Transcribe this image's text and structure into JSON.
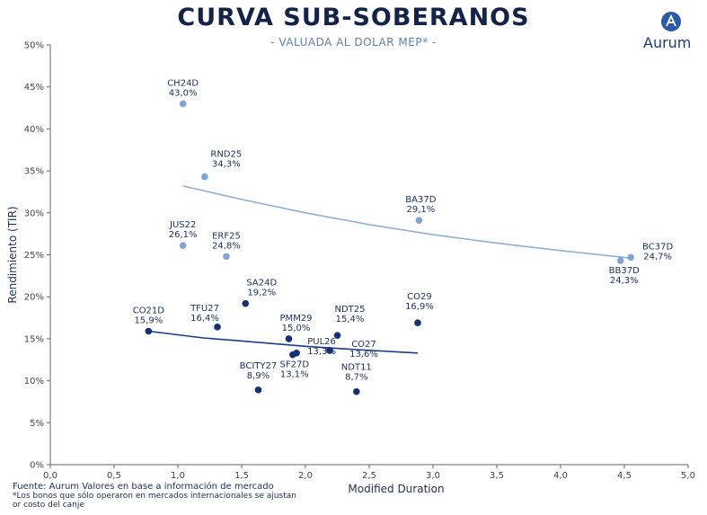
{
  "header": {
    "title": "CURVA SUB-SOBERANOS",
    "subtitle": "- VALUADA AL DOLAR MEP* -",
    "brand": "Aurum"
  },
  "footer": {
    "source": "Fuente: Aurum Valores en base a información de mercado",
    "note": "*Los bonos que sólo operaron en mercados internacionales se ajustan or costo del canje"
  },
  "colors": {
    "light": "#7fa4d6",
    "dark": "#152f7a",
    "curve_light": "#8fb0d4",
    "curve_dark": "#1b3a8a"
  },
  "chart_data": {
    "type": "scatter",
    "title": "CURVA SUB-SOBERANOS",
    "xlabel": "Modified Duration",
    "ylabel": "Rendimiento (TIR)",
    "xlim": [
      0,
      5
    ],
    "ylim": [
      0,
      50
    ],
    "x_ticks": [
      "0,0",
      "0,5",
      "1,0",
      "1,5",
      "2,0",
      "2,5",
      "3,0",
      "3,5",
      "4,0",
      "4,5",
      "5,0"
    ],
    "y_ticks": [
      "0%",
      "5%",
      "10%",
      "15%",
      "20%",
      "25%",
      "30%",
      "35%",
      "40%",
      "45%",
      "50%"
    ],
    "grid": false,
    "series": [
      {
        "group": "light",
        "points": [
          {
            "name": "CH24D",
            "label": "43,0%",
            "x": 1.04,
            "y": 43.0
          },
          {
            "name": "RND25",
            "label": "34,3%",
            "x": 1.21,
            "y": 34.3
          },
          {
            "name": "JUS22",
            "label": "26,1%",
            "x": 1.04,
            "y": 26.1
          },
          {
            "name": "ERF25",
            "label": "24,8%",
            "x": 1.38,
            "y": 24.8
          },
          {
            "name": "BA37D",
            "label": "29,1%",
            "x": 2.89,
            "y": 29.1
          },
          {
            "name": "BC37D",
            "label": "24,7%",
            "x": 4.55,
            "y": 24.7
          },
          {
            "name": "BB37D",
            "label": "24,3%",
            "x": 4.47,
            "y": 24.3
          }
        ],
        "trend": [
          [
            1.04,
            33.2
          ],
          [
            1.5,
            31.6
          ],
          [
            2.0,
            30.0
          ],
          [
            2.5,
            28.6
          ],
          [
            3.0,
            27.4
          ],
          [
            3.5,
            26.4
          ],
          [
            4.0,
            25.5
          ],
          [
            4.55,
            24.6
          ]
        ]
      },
      {
        "group": "dark",
        "points": [
          {
            "name": "CO21D",
            "label": "15,9%",
            "x": 0.77,
            "y": 15.9
          },
          {
            "name": "TFU27",
            "label": "16,4%",
            "x": 1.31,
            "y": 16.4
          },
          {
            "name": "SA24D",
            "label": "19,2%",
            "x": 1.53,
            "y": 19.2
          },
          {
            "name": "PMM29",
            "label": "15,0%",
            "x": 1.87,
            "y": 15.0
          },
          {
            "name": "NDT25",
            "label": "15,4%",
            "x": 2.25,
            "y": 15.4
          },
          {
            "name": "CO27",
            "label": "13,6%",
            "x": 2.19,
            "y": 13.6
          },
          {
            "name": "CO29",
            "label": "16,9%",
            "x": 2.88,
            "y": 16.9
          },
          {
            "name": "BCITY27",
            "label": "8,9%",
            "x": 1.63,
            "y": 8.9
          },
          {
            "name": "PUL26",
            "label": "13,3%",
            "x": 1.93,
            "y": 13.3
          },
          {
            "name": "SF27D",
            "label": "13,1%",
            "x": 1.9,
            "y": 13.1
          },
          {
            "name": "NDT11",
            "label": "8,7%",
            "x": 2.4,
            "y": 8.7
          }
        ],
        "trend": [
          [
            0.77,
            15.9
          ],
          [
            1.2,
            15.1
          ],
          [
            1.6,
            14.6
          ],
          [
            2.0,
            14.1
          ],
          [
            2.4,
            13.7
          ],
          [
            2.88,
            13.3
          ]
        ]
      }
    ]
  }
}
